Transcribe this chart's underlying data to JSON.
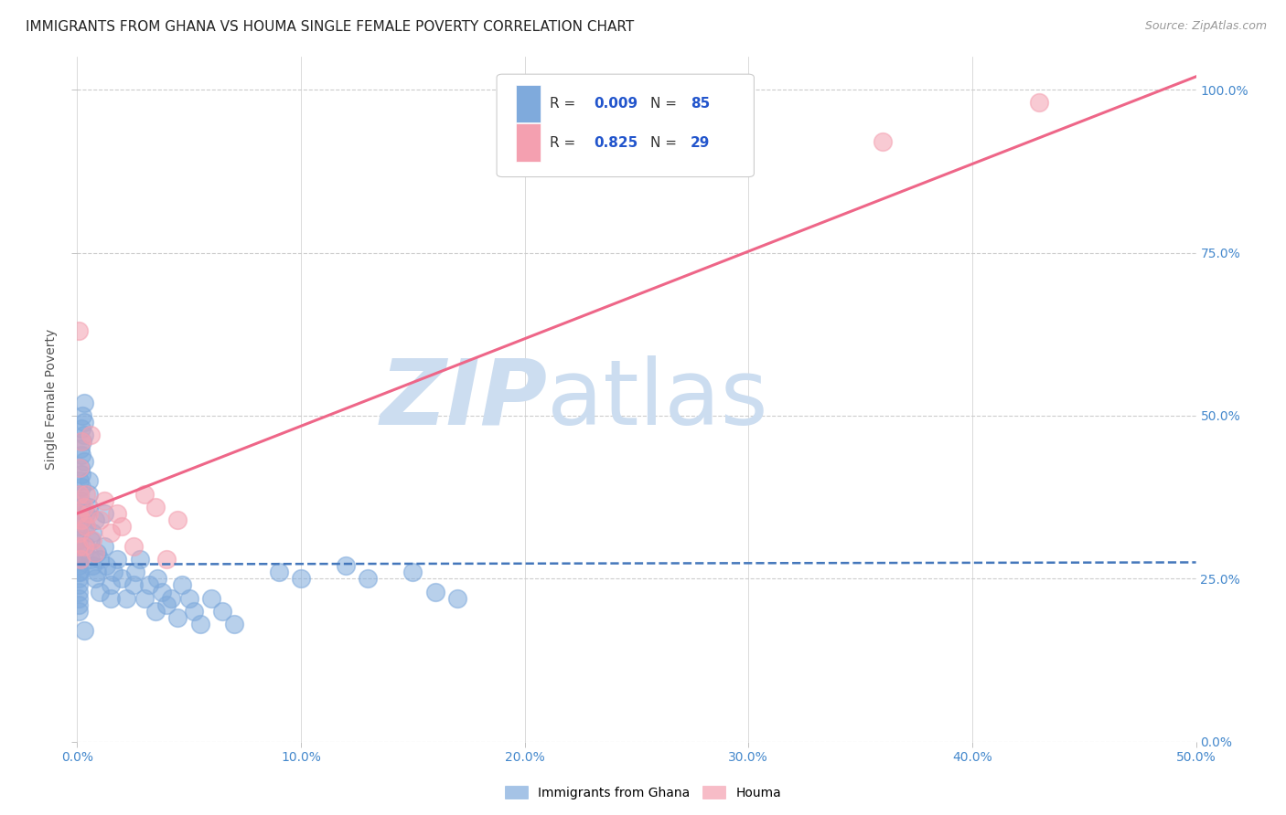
{
  "title": "IMMIGRANTS FROM GHANA VS HOUMA SINGLE FEMALE POVERTY CORRELATION CHART",
  "source": "Source: ZipAtlas.com",
  "ylabel_label": "Single Female Poverty",
  "xmin": 0.0,
  "xmax": 0.5,
  "ymin": 0.0,
  "ymax": 1.05,
  "ytick_vals": [
    0.0,
    0.25,
    0.5,
    0.75,
    1.0
  ],
  "ytick_labels": [
    "0.0%",
    "25.0%",
    "50.0%",
    "75.0%",
    "100.0%"
  ],
  "xtick_vals": [
    0.0,
    0.1,
    0.2,
    0.3,
    0.4,
    0.5
  ],
  "xtick_labels": [
    "0.0%",
    "10.0%",
    "20.0%",
    "30.0%",
    "40.0%",
    "50.0%"
  ],
  "blue_color": "#7faadc",
  "pink_color": "#f4a0b0",
  "blue_line_color": "#4477bb",
  "pink_line_color": "#ee6688",
  "watermark_zip": "ZIP",
  "watermark_atlas": "atlas",
  "watermark_color": "#ccddf0",
  "background_color": "#ffffff",
  "grid_color": "#cccccc",
  "blue_scatter_x": [
    0.0005,
    0.0005,
    0.0005,
    0.0005,
    0.0005,
    0.0005,
    0.0005,
    0.0005,
    0.0005,
    0.0005,
    0.0008,
    0.0008,
    0.0008,
    0.0008,
    0.001,
    0.001,
    0.001,
    0.001,
    0.001,
    0.001,
    0.0015,
    0.0015,
    0.0015,
    0.002,
    0.002,
    0.002,
    0.002,
    0.002,
    0.0025,
    0.0025,
    0.003,
    0.003,
    0.003,
    0.003,
    0.004,
    0.004,
    0.004,
    0.005,
    0.005,
    0.005,
    0.006,
    0.006,
    0.007,
    0.007,
    0.008,
    0.008,
    0.009,
    0.009,
    0.01,
    0.01,
    0.012,
    0.012,
    0.013,
    0.015,
    0.015,
    0.016,
    0.018,
    0.02,
    0.022,
    0.025,
    0.026,
    0.028,
    0.03,
    0.032,
    0.035,
    0.036,
    0.038,
    0.04,
    0.042,
    0.045,
    0.047,
    0.05,
    0.052,
    0.055,
    0.06,
    0.065,
    0.07,
    0.09,
    0.1,
    0.12,
    0.13,
    0.15,
    0.16,
    0.17,
    0.003
  ],
  "blue_scatter_y": [
    0.27,
    0.28,
    0.26,
    0.25,
    0.24,
    0.23,
    0.22,
    0.21,
    0.2,
    0.3,
    0.29,
    0.31,
    0.33,
    0.35,
    0.32,
    0.34,
    0.28,
    0.26,
    0.38,
    0.4,
    0.42,
    0.45,
    0.37,
    0.36,
    0.39,
    0.41,
    0.44,
    0.48,
    0.46,
    0.5,
    0.43,
    0.47,
    0.49,
    0.52,
    0.3,
    0.35,
    0.33,
    0.38,
    0.4,
    0.36,
    0.31,
    0.28,
    0.32,
    0.27,
    0.34,
    0.25,
    0.29,
    0.26,
    0.23,
    0.28,
    0.3,
    0.35,
    0.27,
    0.24,
    0.22,
    0.26,
    0.28,
    0.25,
    0.22,
    0.24,
    0.26,
    0.28,
    0.22,
    0.24,
    0.2,
    0.25,
    0.23,
    0.21,
    0.22,
    0.19,
    0.24,
    0.22,
    0.2,
    0.18,
    0.22,
    0.2,
    0.18,
    0.26,
    0.25,
    0.27,
    0.25,
    0.26,
    0.23,
    0.22,
    0.17
  ],
  "pink_scatter_x": [
    0.0005,
    0.0005,
    0.0005,
    0.001,
    0.001,
    0.001,
    0.0015,
    0.002,
    0.002,
    0.003,
    0.003,
    0.004,
    0.004,
    0.005,
    0.006,
    0.007,
    0.008,
    0.01,
    0.012,
    0.015,
    0.018,
    0.02,
    0.025,
    0.03,
    0.035,
    0.04,
    0.045,
    0.36,
    0.43
  ],
  "pink_scatter_y": [
    0.63,
    0.35,
    0.3,
    0.38,
    0.32,
    0.42,
    0.28,
    0.46,
    0.34,
    0.36,
    0.3,
    0.33,
    0.38,
    0.35,
    0.47,
    0.31,
    0.29,
    0.34,
    0.37,
    0.32,
    0.35,
    0.33,
    0.3,
    0.38,
    0.36,
    0.28,
    0.34,
    0.92,
    0.98
  ],
  "blue_trend_x": [
    0.0,
    0.5
  ],
  "blue_trend_y": [
    0.272,
    0.275
  ],
  "pink_trend_x": [
    0.0,
    0.5
  ],
  "pink_trend_y": [
    0.35,
    1.02
  ],
  "title_fontsize": 11,
  "source_fontsize": 9,
  "axis_label_fontsize": 10,
  "tick_fontsize": 10,
  "legend_fontsize": 11
}
